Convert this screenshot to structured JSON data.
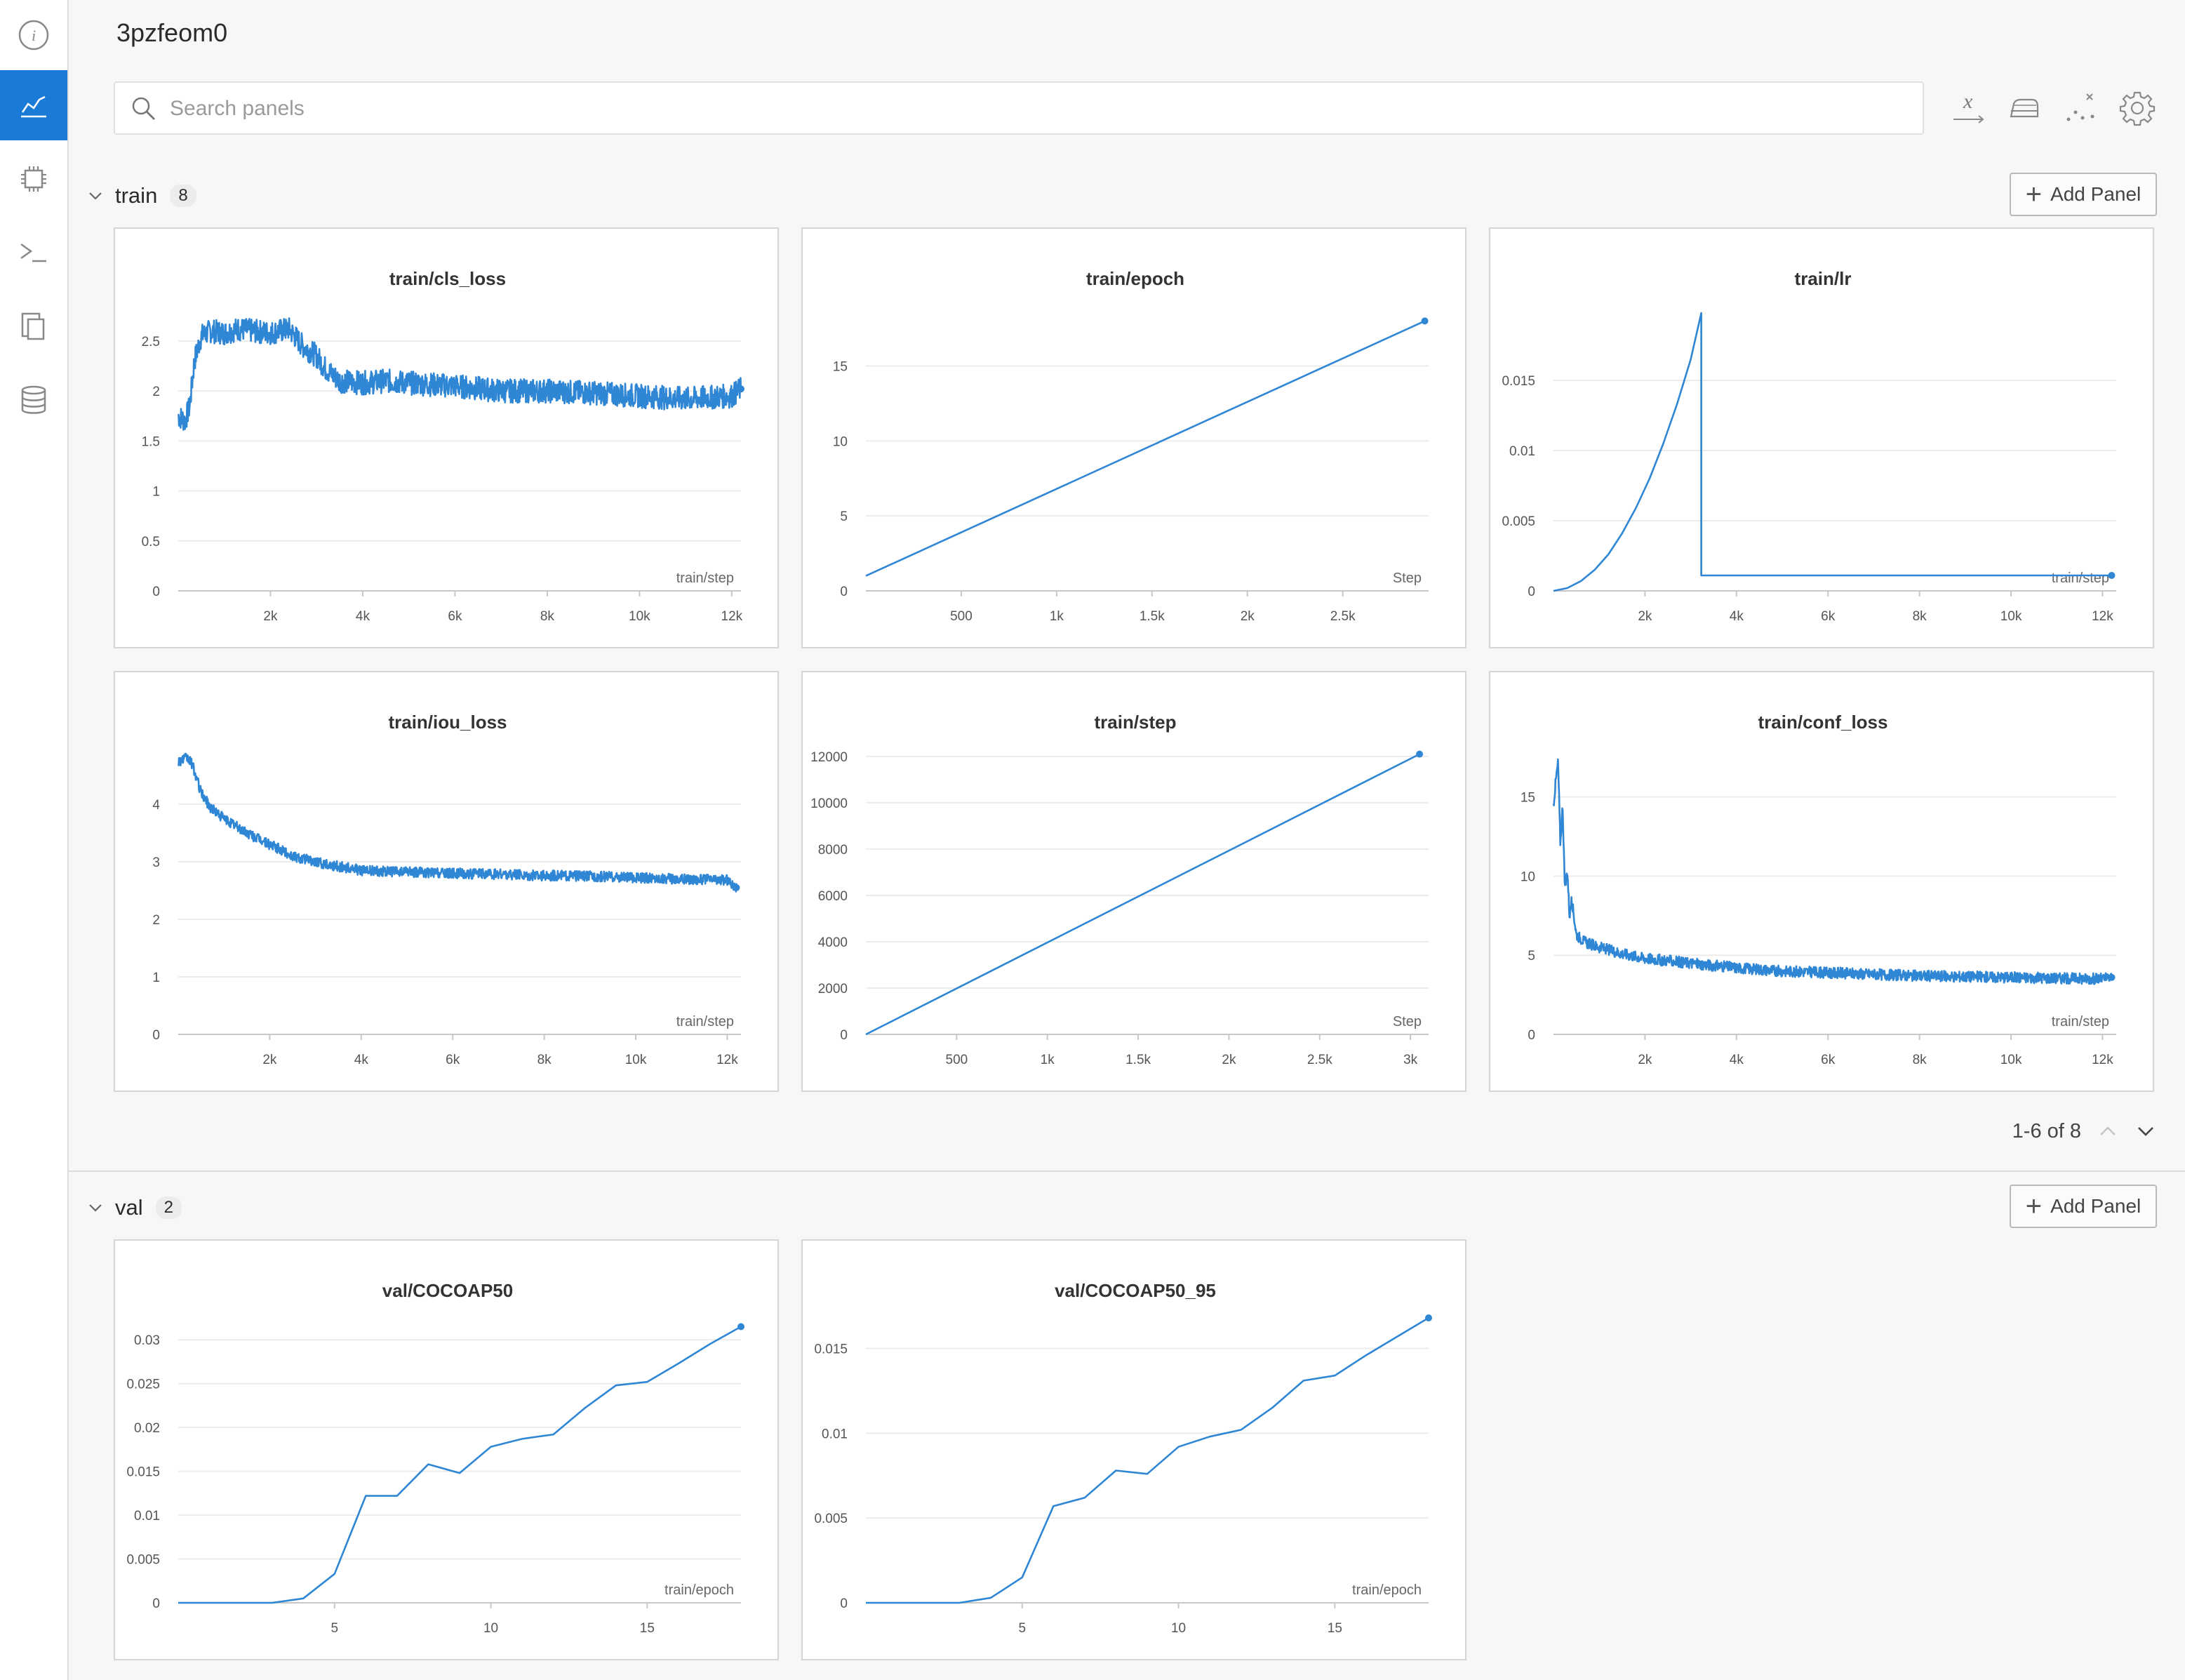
{
  "run": {
    "title": "3pzfeom0"
  },
  "search": {
    "placeholder": "Search panels",
    "value": ""
  },
  "sidebar": {
    "items": [
      {
        "name": "info-icon",
        "active": false
      },
      {
        "name": "charts-icon",
        "active": true
      },
      {
        "name": "system-chip-icon",
        "active": false
      },
      {
        "name": "terminal-icon",
        "active": false
      },
      {
        "name": "files-icon",
        "active": false
      },
      {
        "name": "artifacts-database-icon",
        "active": false
      }
    ]
  },
  "toolbar": {
    "icons": [
      "x-axis-icon",
      "smoothing-icon",
      "outliers-icon",
      "settings-gear-icon"
    ]
  },
  "sections": [
    {
      "name": "train",
      "count": "8",
      "add_label": "Add Panel"
    },
    {
      "name": "val",
      "count": "2",
      "add_label": "Add Panel"
    }
  ],
  "pager": {
    "text": "1-6 of 8"
  },
  "colors": {
    "accent": "#1a7bd6",
    "line": "#2e86d4"
  },
  "chart_data": [
    {
      "id": "train_cls_loss",
      "type": "line",
      "title": "train/cls_loss",
      "xlabel": "train/step",
      "xlim": [
        0,
        12200
      ],
      "ylim": [
        0,
        2.85
      ],
      "xticks": [
        2000,
        4000,
        6000,
        8000,
        10000,
        12000
      ],
      "xtick_labels": [
        "2k",
        "4k",
        "6k",
        "8k",
        "10k",
        "12k"
      ],
      "yticks": [
        0,
        0.5,
        1,
        1.5,
        2,
        2.5
      ],
      "ytick_labels": [
        "0",
        "0.5",
        "1",
        "1.5",
        "2",
        "2.5"
      ],
      "series": [
        {
          "x": [
            0,
            150,
            250,
            350,
            500,
            700,
            1000,
            1300,
            1600,
            2000,
            2400,
            2700,
            3000,
            3200,
            3500,
            4000,
            4500,
            5000,
            6000,
            7000,
            8000,
            9000,
            10000,
            11000,
            12000,
            12200
          ],
          "y": [
            1.75,
            1.7,
            1.85,
            2.3,
            2.55,
            2.6,
            2.58,
            2.62,
            2.6,
            2.58,
            2.62,
            2.45,
            2.35,
            2.22,
            2.1,
            2.08,
            2.1,
            2.08,
            2.05,
            2.0,
            2.0,
            1.98,
            1.95,
            1.92,
            1.95,
            2.02
          ],
          "noise": 0.12
        }
      ],
      "end_marker": true
    },
    {
      "id": "train_epoch",
      "type": "line",
      "title": "train/epoch",
      "xlabel": "Step",
      "xlim": [
        0,
        2950
      ],
      "ylim": [
        0,
        19
      ],
      "xticks": [
        500,
        1000,
        1500,
        2000,
        2500
      ],
      "xtick_labels": [
        "500",
        "1k",
        "1.5k",
        "2k",
        "2.5k"
      ],
      "yticks": [
        0,
        5,
        10,
        15
      ],
      "ytick_labels": [
        "0",
        "5",
        "10",
        "15"
      ],
      "series": [
        {
          "x": [
            0,
            2930
          ],
          "y": [
            1,
            18
          ],
          "noise": 0
        }
      ],
      "end_marker": true
    },
    {
      "id": "train_lr",
      "type": "line",
      "title": "train/lr",
      "xlabel": "train/step",
      "xlim": [
        0,
        12300
      ],
      "ylim": [
        0,
        0.0203
      ],
      "xticks": [
        2000,
        4000,
        6000,
        8000,
        10000,
        12000
      ],
      "xtick_labels": [
        "2k",
        "4k",
        "6k",
        "8k",
        "10k",
        "12k"
      ],
      "yticks": [
        0,
        0.005,
        0.01,
        0.015
      ],
      "ytick_labels": [
        "0",
        "0.005",
        "0.01",
        "0.015"
      ],
      "series": [
        {
          "x": [
            0,
            300,
            600,
            900,
            1200,
            1500,
            1800,
            2100,
            2400,
            2700,
            3000,
            3230,
            3230,
            12200
          ],
          "y": [
            0.0,
            0.0002,
            0.0007,
            0.0015,
            0.0026,
            0.0041,
            0.0059,
            0.008,
            0.0105,
            0.0133,
            0.0165,
            0.0198,
            0.0011,
            0.0011
          ],
          "noise": 0
        }
      ],
      "end_marker": true
    },
    {
      "id": "train_iou_loss",
      "type": "line",
      "title": "train/iou_loss",
      "xlabel": "train/step",
      "xlim": [
        0,
        12300
      ],
      "ylim": [
        0,
        4.95
      ],
      "xticks": [
        2000,
        4000,
        6000,
        8000,
        10000,
        12000
      ],
      "xtick_labels": [
        "2k",
        "4k",
        "6k",
        "8k",
        "10k",
        "12k"
      ],
      "yticks": [
        0,
        1,
        2,
        3,
        4
      ],
      "ytick_labels": [
        "0",
        "1",
        "2",
        "3",
        "4"
      ],
      "series": [
        {
          "x": [
            0,
            200,
            300,
            500,
            700,
            1000,
            1500,
            2000,
            2500,
            3000,
            3500,
            4000,
            5000,
            6000,
            7000,
            8000,
            9000,
            10000,
            11000,
            12000,
            12200
          ],
          "y": [
            4.75,
            4.8,
            4.7,
            4.2,
            3.95,
            3.75,
            3.5,
            3.3,
            3.1,
            3.0,
            2.92,
            2.85,
            2.82,
            2.8,
            2.78,
            2.76,
            2.75,
            2.72,
            2.7,
            2.68,
            2.55
          ],
          "noise": 0.09
        }
      ],
      "end_marker": true
    },
    {
      "id": "train_step",
      "type": "line",
      "title": "train/step",
      "xlabel": "Step",
      "xlim": [
        0,
        3100
      ],
      "ylim": [
        0,
        12300
      ],
      "xticks": [
        500,
        1000,
        1500,
        2000,
        2500,
        3000
      ],
      "xtick_labels": [
        "500",
        "1k",
        "1.5k",
        "2k",
        "2.5k",
        "3k"
      ],
      "yticks": [
        0,
        2000,
        4000,
        6000,
        8000,
        10000,
        12000
      ],
      "ytick_labels": [
        "0",
        "2000",
        "4000",
        "6000",
        "8000",
        "10000",
        "12000"
      ],
      "series": [
        {
          "x": [
            0,
            3050
          ],
          "y": [
            0,
            12100
          ],
          "noise": 0
        }
      ],
      "end_marker": true
    },
    {
      "id": "train_conf_loss",
      "type": "line",
      "title": "train/conf_loss",
      "xlabel": "train/step",
      "xlim": [
        0,
        12300
      ],
      "ylim": [
        0,
        18
      ],
      "xticks": [
        2000,
        4000,
        6000,
        8000,
        10000,
        12000
      ],
      "xtick_labels": [
        "2k",
        "4k",
        "6k",
        "8k",
        "10k",
        "12k"
      ],
      "yticks": [
        0,
        5,
        10,
        15
      ],
      "ytick_labels": [
        "0",
        "5",
        "10",
        "15"
      ],
      "series": [
        {
          "x": [
            0,
            50,
            100,
            150,
            200,
            250,
            300,
            350,
            400,
            500,
            700,
            1000,
            1500,
            2000,
            3000,
            4000,
            5000,
            6000,
            7000,
            8000,
            9000,
            10000,
            11000,
            12000,
            12200
          ],
          "y": [
            14.5,
            16.0,
            17.2,
            12.0,
            14.5,
            9.0,
            10.5,
            7.5,
            8.5,
            6.3,
            5.8,
            5.5,
            5.1,
            4.8,
            4.5,
            4.2,
            4.0,
            3.9,
            3.8,
            3.7,
            3.65,
            3.6,
            3.55,
            3.5,
            3.6
          ],
          "noise": 0.35
        }
      ],
      "end_marker": true
    },
    {
      "id": "val_cocoap50",
      "type": "line",
      "title": "val/COCOAP50",
      "xlabel": "train/epoch",
      "xlim": [
        0,
        18
      ],
      "ylim": [
        0,
        0.0325
      ],
      "xticks": [
        5,
        10,
        15
      ],
      "xtick_labels": [
        "5",
        "10",
        "15"
      ],
      "yticks": [
        0,
        0.005,
        0.01,
        0.015,
        0.02,
        0.025,
        0.03
      ],
      "ytick_labels": [
        "0",
        "0.005",
        "0.01",
        "0.015",
        "0.02",
        "0.025",
        "0.03"
      ],
      "series": [
        {
          "x": [
            0,
            1,
            2,
            3,
            4,
            5,
            6,
            7,
            8,
            9,
            10,
            11,
            12,
            13,
            14,
            15,
            16,
            17,
            18
          ],
          "y": [
            0.0,
            0.0,
            0.0,
            0.0,
            0.0005,
            0.0033,
            0.0122,
            0.0122,
            0.0158,
            0.0148,
            0.0178,
            0.0187,
            0.0192,
            0.0222,
            0.0248,
            0.0252,
            0.0273,
            0.0295,
            0.0315
          ],
          "noise": 0
        }
      ],
      "end_marker": true
    },
    {
      "id": "val_cocoap50_95",
      "type": "line",
      "title": "val/COCOAP50_95",
      "xlabel": "train/epoch",
      "xlim": [
        0,
        18
      ],
      "ylim": [
        0,
        0.0168
      ],
      "xticks": [
        5,
        10,
        15
      ],
      "xtick_labels": [
        "5",
        "10",
        "15"
      ],
      "yticks": [
        0,
        0.005,
        0.01,
        0.015
      ],
      "ytick_labels": [
        "0",
        "0.005",
        "0.01",
        "0.015"
      ],
      "series": [
        {
          "x": [
            0,
            1,
            2,
            3,
            4,
            5,
            6,
            7,
            8,
            9,
            10,
            11,
            12,
            13,
            14,
            15,
            16,
            17,
            18
          ],
          "y": [
            0.0,
            0.0,
            0.0,
            0.0,
            0.0003,
            0.0015,
            0.0057,
            0.0062,
            0.0078,
            0.0076,
            0.0092,
            0.0098,
            0.0102,
            0.0115,
            0.0131,
            0.0134,
            0.0146,
            0.0157,
            0.0168
          ],
          "noise": 0
        }
      ],
      "end_marker": true
    }
  ]
}
